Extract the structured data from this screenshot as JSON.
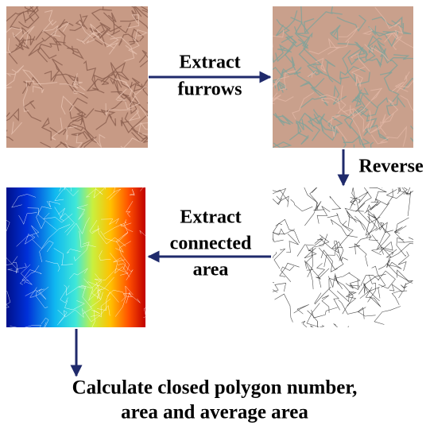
{
  "steps": [
    {
      "lines": [
        "Extract",
        "furrows"
      ]
    },
    {
      "lines": [
        "Reverse"
      ]
    },
    {
      "lines": [
        "Extract",
        "connected",
        "area"
      ]
    },
    {
      "lines": [
        "Calculate closed polygon number,",
        "area and average area"
      ]
    }
  ]
}
